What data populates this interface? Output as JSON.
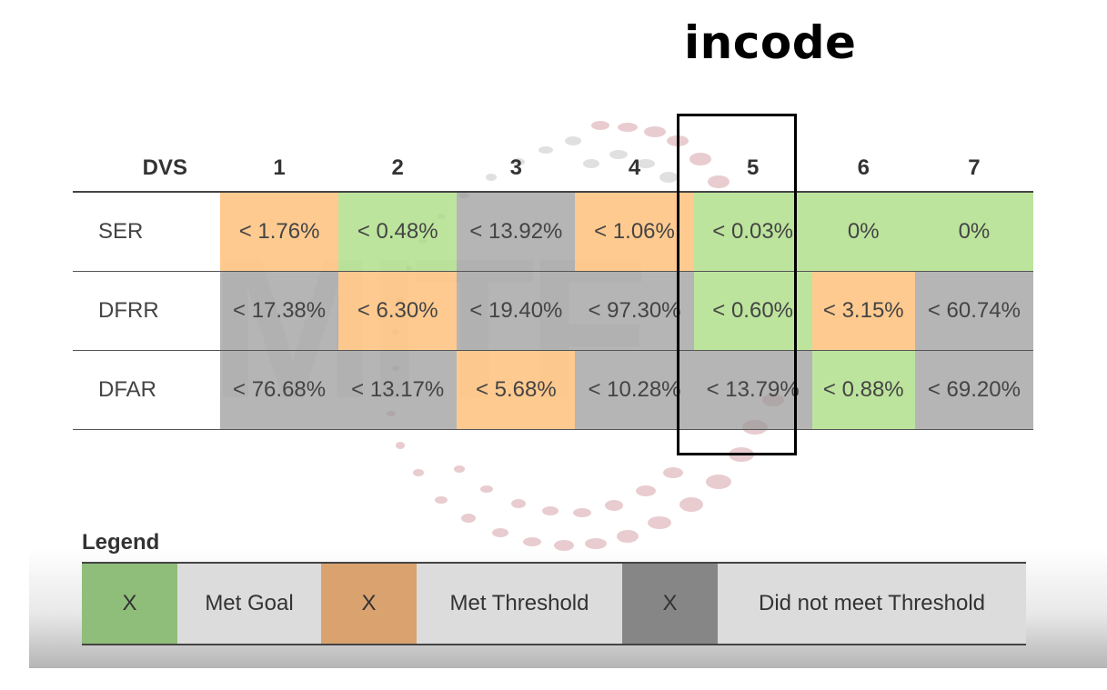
{
  "brand": "incode",
  "table": {
    "corner_label": "DVS",
    "columns": [
      "1",
      "2",
      "3",
      "4",
      "5",
      "6",
      "7"
    ],
    "rows": [
      {
        "label": "SER",
        "cells": [
          {
            "value": "< 1.76%",
            "status": "threshold"
          },
          {
            "value": "< 0.48%",
            "status": "goal"
          },
          {
            "value": "< 13.92%",
            "status": "not-met"
          },
          {
            "value": "< 1.06%",
            "status": "threshold"
          },
          {
            "value": "< 0.03%",
            "status": "goal"
          },
          {
            "value": "0%",
            "status": "goal"
          },
          {
            "value": "0%",
            "status": "goal"
          }
        ]
      },
      {
        "label": "DFRR",
        "cells": [
          {
            "value": "< 17.38%",
            "status": "not-met"
          },
          {
            "value": "< 6.30%",
            "status": "threshold"
          },
          {
            "value": "< 19.40%",
            "status": "not-met"
          },
          {
            "value": "< 97.30%",
            "status": "not-met"
          },
          {
            "value": "< 0.60%",
            "status": "goal"
          },
          {
            "value": "< 3.15%",
            "status": "threshold"
          },
          {
            "value": "< 60.74%",
            "status": "not-met"
          }
        ]
      },
      {
        "label": "DFAR",
        "cells": [
          {
            "value": "< 76.68%",
            "status": "not-met"
          },
          {
            "value": "< 13.17%",
            "status": "not-met"
          },
          {
            "value": "< 5.68%",
            "status": "threshold"
          },
          {
            "value": "< 10.28%",
            "status": "not-met"
          },
          {
            "value": "< 13.79%",
            "status": "not-met"
          },
          {
            "value": "< 0.88%",
            "status": "goal"
          },
          {
            "value": "< 69.20%",
            "status": "not-met"
          }
        ]
      }
    ],
    "highlighted_column": "5"
  },
  "legend": {
    "title": "Legend",
    "items": [
      {
        "swatch": "X",
        "label": "Met Goal",
        "color": "#8fbd7a"
      },
      {
        "swatch": "X",
        "label": "Met Threshold",
        "color": "#d9a26f"
      },
      {
        "swatch": "X",
        "label": "Did not meet Threshold",
        "color": "#868686"
      }
    ]
  },
  "colors": {
    "goal": "#aadc82",
    "threshold": "#ffbe78",
    "not_met": "#969696"
  }
}
